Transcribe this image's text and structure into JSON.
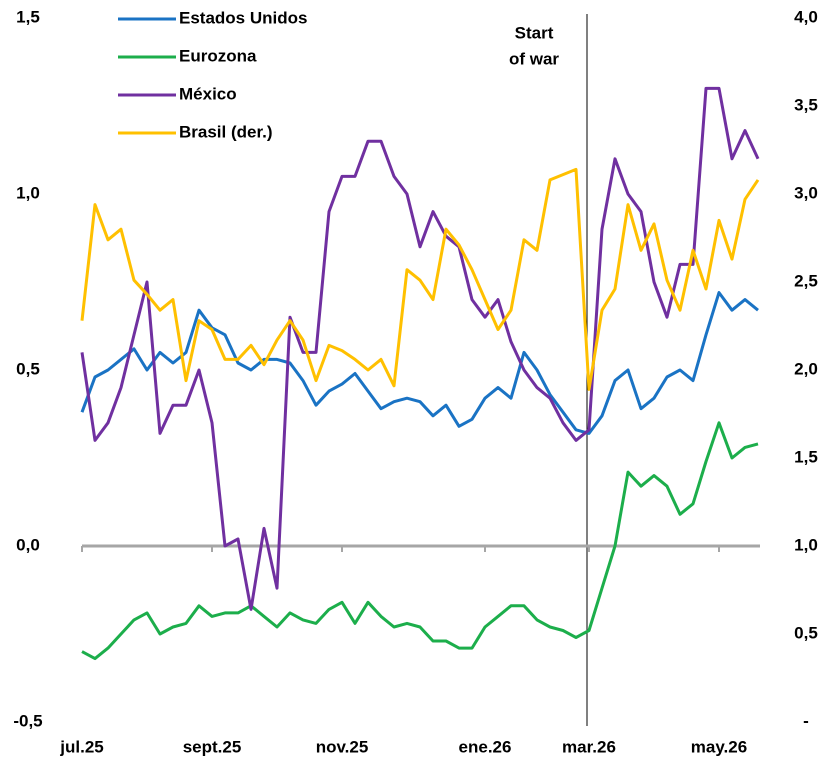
{
  "chart_data": {
    "type": "line",
    "categories": [
      "jul.25",
      null,
      null,
      null,
      null,
      null,
      null,
      null,
      null,
      null,
      "sept.25",
      null,
      null,
      null,
      null,
      null,
      null,
      null,
      null,
      null,
      "nov.25",
      null,
      null,
      null,
      null,
      null,
      null,
      null,
      null,
      null,
      null,
      "ene.26",
      null,
      null,
      null,
      null,
      null,
      null,
      null,
      "mar.26",
      null,
      null,
      null,
      null,
      null,
      null,
      null,
      null,
      null,
      "may.26",
      null,
      null,
      null
    ],
    "series": [
      {
        "name": "Estados Unidos",
        "color": "#1a73c4",
        "values": [
          0.38,
          0.48,
          0.5,
          0.53,
          0.56,
          0.5,
          0.55,
          0.52,
          0.55,
          0.67,
          0.62,
          0.6,
          0.52,
          0.5,
          0.53,
          0.53,
          0.52,
          0.47,
          0.4,
          0.44,
          0.46,
          0.49,
          0.44,
          0.39,
          0.41,
          0.42,
          0.41,
          0.37,
          0.4,
          0.34,
          0.36,
          0.42,
          0.45,
          0.42,
          0.55,
          0.5,
          0.43,
          0.38,
          0.33,
          0.32,
          0.37,
          0.47,
          0.5,
          0.39,
          0.42,
          0.48,
          0.5,
          0.47,
          0.6,
          0.72,
          0.67,
          0.7,
          0.67
        ]
      },
      {
        "name": "Eurozona",
        "color": "#1cae4b",
        "values": [
          -0.3,
          -0.32,
          -0.29,
          -0.25,
          -0.21,
          -0.19,
          -0.25,
          -0.23,
          -0.22,
          -0.17,
          -0.2,
          -0.19,
          -0.19,
          -0.17,
          -0.2,
          -0.23,
          -0.19,
          -0.21,
          -0.22,
          -0.18,
          -0.16,
          -0.22,
          -0.16,
          -0.2,
          -0.23,
          -0.22,
          -0.23,
          -0.27,
          -0.27,
          -0.29,
          -0.29,
          -0.23,
          -0.2,
          -0.17,
          -0.17,
          -0.21,
          -0.23,
          -0.24,
          -0.26,
          -0.24,
          -0.12,
          0.0,
          0.21,
          0.17,
          0.2,
          0.17,
          0.09,
          0.12,
          0.24,
          0.35,
          0.25,
          0.28,
          0.29
        ]
      },
      {
        "name": "México",
        "color": "#7030a0",
        "values": [
          0.55,
          0.3,
          0.35,
          0.45,
          0.6,
          0.75,
          0.32,
          0.4,
          0.4,
          0.5,
          0.35,
          0.0,
          0.02,
          -0.18,
          0.05,
          -0.12,
          0.65,
          0.55,
          0.55,
          0.95,
          1.05,
          1.05,
          1.15,
          1.15,
          1.05,
          1.0,
          0.85,
          0.95,
          0.88,
          0.85,
          0.7,
          0.65,
          0.7,
          0.58,
          0.5,
          0.45,
          0.42,
          0.35,
          0.3,
          0.33,
          0.9,
          1.1,
          1.0,
          0.95,
          0.75,
          0.65,
          0.8,
          0.8,
          1.3,
          1.3,
          1.1,
          1.18,
          1.1
        ]
      },
      {
        "name": "Brasil (der.)",
        "color": "#ffc000",
        "axis": "y2",
        "values": [
          2.28,
          2.94,
          2.74,
          2.8,
          2.51,
          2.43,
          2.34,
          2.4,
          1.94,
          2.28,
          2.23,
          2.06,
          2.06,
          2.14,
          2.03,
          2.17,
          2.28,
          2.17,
          1.94,
          2.14,
          2.11,
          2.06,
          2.0,
          2.06,
          1.91,
          2.57,
          2.51,
          2.4,
          2.8,
          2.71,
          2.57,
          2.4,
          2.23,
          2.34,
          2.74,
          2.68,
          3.08,
          3.11,
          3.14,
          1.89,
          2.34,
          2.46,
          2.94,
          2.68,
          2.83,
          2.51,
          2.34,
          2.68,
          2.46,
          2.85,
          2.63,
          2.97,
          3.08
        ]
      }
    ],
    "ylim": [
      -0.5,
      1.5
    ],
    "yticks": [
      {
        "value": -0.5,
        "label": "-0,5"
      },
      {
        "value": 0,
        "label": "0,0"
      },
      {
        "value": 0.5,
        "label": "0,5"
      },
      {
        "value": 1,
        "label": "1,0"
      },
      {
        "value": 1.5,
        "label": "1,5"
      }
    ],
    "y2lim": [
      0,
      4
    ],
    "y2ticks": [
      {
        "value": 0,
        "label": "-"
      },
      {
        "value": 0.5,
        "label": "0,5"
      },
      {
        "value": 1,
        "label": "1,0"
      },
      {
        "value": 1.5,
        "label": "1,5"
      },
      {
        "value": 2,
        "label": "2,0"
      },
      {
        "value": 2.5,
        "label": "2,5"
      },
      {
        "value": 3,
        "label": "3,0"
      },
      {
        "value": 3.5,
        "label": "3,5"
      },
      {
        "value": 4,
        "label": "4,0"
      }
    ],
    "annotation": [
      "Start",
      "of war"
    ],
    "legend": "top-left"
  }
}
